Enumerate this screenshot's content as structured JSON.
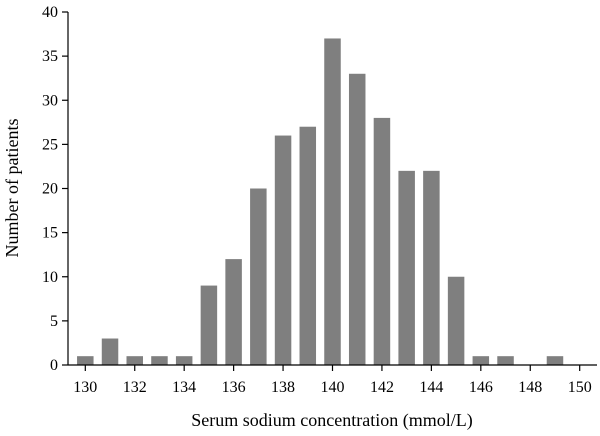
{
  "chart_data": {
    "type": "bar",
    "title": "",
    "xlabel": "Serum sodium concentration (mmol/L)",
    "ylabel": "Number of patients",
    "xlim": [
      129.3,
      150.7
    ],
    "ylim": [
      0,
      40
    ],
    "x_ticks": [
      130,
      132,
      134,
      136,
      138,
      140,
      142,
      144,
      146,
      148,
      150
    ],
    "y_ticks": [
      0,
      5,
      10,
      15,
      20,
      25,
      30,
      35,
      40
    ],
    "x": [
      130,
      131,
      132,
      133,
      134,
      135,
      136,
      137,
      138,
      139,
      140,
      141,
      142,
      143,
      144,
      145,
      146,
      147,
      148,
      149
    ],
    "values": [
      1,
      3,
      1,
      1,
      1,
      9,
      12,
      20,
      26,
      27,
      37,
      33,
      28,
      22,
      22,
      10,
      1,
      1,
      0,
      1
    ],
    "bar_color": "#7f7f7f",
    "grid": false,
    "legend": "none"
  }
}
